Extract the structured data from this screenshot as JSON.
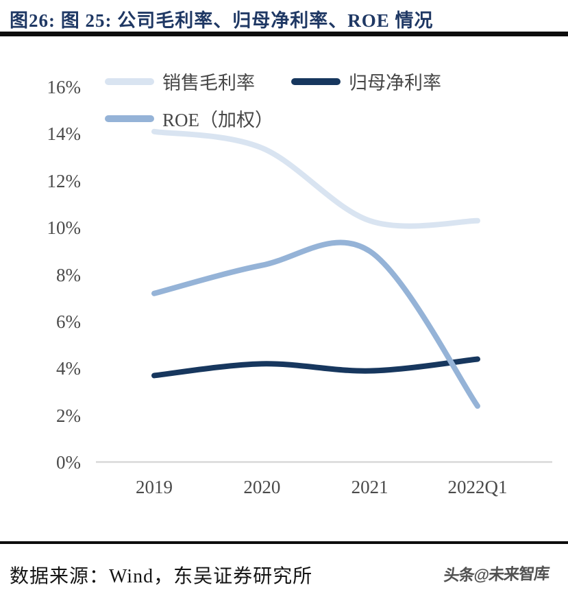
{
  "title": "图26:  图 25:  公司毛利率、归母净利率、ROE 情况",
  "chart_data": {
    "type": "line",
    "smooth": true,
    "categories": [
      "2019",
      "2020",
      "2021",
      "2022Q1"
    ],
    "series": [
      {
        "name": "销售毛利率",
        "color_key": "gross_margin",
        "values": [
          14.1,
          13.4,
          10.3,
          10.3
        ]
      },
      {
        "name": "归母净利率",
        "color_key": "net_margin",
        "values": [
          3.7,
          4.2,
          3.9,
          4.4
        ]
      },
      {
        "name": "ROE（加权）",
        "color_key": "roe",
        "values": [
          7.2,
          8.4,
          9.0,
          2.4
        ]
      }
    ],
    "ylabel": "",
    "xlabel": "",
    "ylim": [
      0,
      16
    ],
    "y_ticks": [
      "16%",
      "14%",
      "12%",
      "10%",
      "8%",
      "6%",
      "4%",
      "2%",
      "0%"
    ],
    "grid": "off",
    "legend_position": "top-left"
  },
  "footer": {
    "source": "数据来源：Wind，东吴证券研究所",
    "watermark": "头条@未来智库"
  },
  "colors": {
    "gross_margin": "#d9e4f1",
    "net_margin": "#17375e",
    "roe": "#95b3d7",
    "title_text": "#1f3864",
    "axis_line": "#d9d9d9",
    "tick_text": "#4a4a4a"
  }
}
